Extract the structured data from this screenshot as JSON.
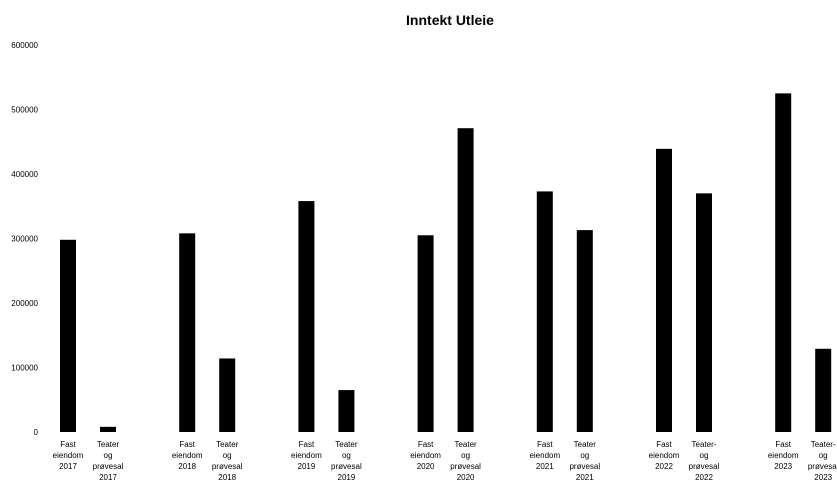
{
  "chart_data": {
    "type": "bar",
    "title": "Inntekt Utleie",
    "xlabel": "",
    "ylabel": "",
    "ylim": [
      0,
      600000
    ],
    "y_ticks": [
      "0",
      "100000",
      "200000",
      "300000",
      "400000",
      "500000",
      "600000"
    ],
    "grid": false,
    "legend": "none",
    "bar_color": "#000000",
    "categories": [
      [
        "Fast",
        "eiendom",
        "2017"
      ],
      [
        "Teater",
        "og",
        "prøvesal",
        "2017"
      ],
      [
        "Fast",
        "eiendom",
        "2018"
      ],
      [
        "Teater",
        "og",
        "prøvesal",
        "2018"
      ],
      [
        "Fast",
        "eiendom",
        "2019"
      ],
      [
        "Teater",
        "og",
        "prøvesal",
        "2019"
      ],
      [
        "Fast",
        "eiendom",
        "2020"
      ],
      [
        "Teater",
        "og",
        "prøvesal",
        "2020"
      ],
      [
        "Fast",
        "eiendom",
        "2021"
      ],
      [
        "Teater",
        "og",
        "prøvesal",
        "2021"
      ],
      [
        "Fast",
        "eiendom",
        "2022"
      ],
      [
        "Teater-",
        "og",
        "prøvesal",
        "2022"
      ],
      [
        "Fast",
        "eiendom",
        "2023"
      ],
      [
        "Teater-",
        "og",
        "prøvesal",
        "2023"
      ]
    ],
    "values": [
      298000,
      8000,
      308000,
      114000,
      358000,
      65000,
      305000,
      471000,
      373000,
      313000,
      439000,
      370000,
      525000,
      129000
    ]
  }
}
